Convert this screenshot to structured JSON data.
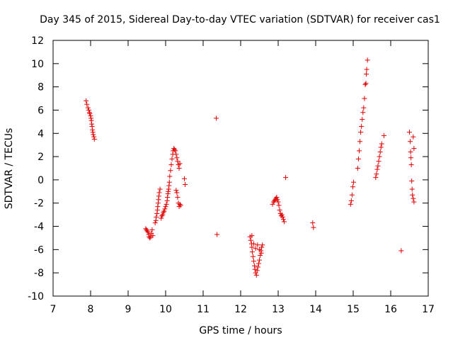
{
  "chart_data": {
    "type": "scatter",
    "title": "Day 345 of 2015, Sidereal Day-to-day VTEC variation (SDTVAR) for receiver cas1",
    "xlabel": "GPS time / hours",
    "ylabel": "SDTVAR / TECUs",
    "xlim": [
      7,
      17
    ],
    "ylim": [
      -10,
      12
    ],
    "xticks": [
      "7",
      "8",
      "9",
      "10",
      "11",
      "12",
      "13",
      "14",
      "15",
      "16",
      "17"
    ],
    "yticks": [
      "-10",
      "-8",
      "-6",
      "-4",
      "-2",
      "0",
      "2",
      "4",
      "6",
      "8",
      "10",
      "12"
    ],
    "grid": false,
    "marker": "+",
    "marker_color": "#e00000",
    "series": [
      {
        "name": "SDTVAR",
        "points": [
          [
            7.88,
            6.8
          ],
          [
            7.9,
            6.5
          ],
          [
            7.93,
            6.2
          ],
          [
            7.95,
            6.0
          ],
          [
            7.97,
            5.8
          ],
          [
            7.98,
            5.7
          ],
          [
            8.0,
            5.5
          ],
          [
            8.01,
            5.3
          ],
          [
            8.02,
            5.1
          ],
          [
            8.03,
            4.8
          ],
          [
            8.04,
            4.6
          ],
          [
            8.05,
            4.3
          ],
          [
            8.06,
            4.1
          ],
          [
            8.07,
            3.9
          ],
          [
            8.09,
            3.7
          ],
          [
            8.1,
            3.5
          ],
          [
            9.47,
            -4.2
          ],
          [
            9.49,
            -4.3
          ],
          [
            9.51,
            -4.4
          ],
          [
            9.53,
            -4.5
          ],
          [
            9.55,
            -4.7
          ],
          [
            9.56,
            -4.9
          ],
          [
            9.58,
            -5.0
          ],
          [
            9.6,
            -4.9
          ],
          [
            9.62,
            -4.6
          ],
          [
            9.64,
            -4.3
          ],
          [
            9.66,
            -4.8
          ],
          [
            9.72,
            -3.7
          ],
          [
            9.74,
            -3.5
          ],
          [
            9.75,
            -3.2
          ],
          [
            9.77,
            -2.9
          ],
          [
            9.78,
            -2.6
          ],
          [
            9.79,
            -2.3
          ],
          [
            9.8,
            -2.0
          ],
          [
            9.81,
            -1.7
          ],
          [
            9.82,
            -1.4
          ],
          [
            9.83,
            -1.1
          ],
          [
            9.85,
            -0.8
          ],
          [
            9.88,
            -3.3
          ],
          [
            9.9,
            -3.1
          ],
          [
            9.92,
            -3.0
          ],
          [
            9.94,
            -2.8
          ],
          [
            9.96,
            -2.7
          ],
          [
            9.98,
            -2.5
          ],
          [
            10.0,
            -2.3
          ],
          [
            10.02,
            -2.1
          ],
          [
            10.04,
            -1.8
          ],
          [
            10.05,
            -1.5
          ],
          [
            10.06,
            -1.2
          ],
          [
            10.07,
            -1.0
          ],
          [
            10.08,
            -0.8
          ],
          [
            10.09,
            -0.5
          ],
          [
            10.1,
            -0.2
          ],
          [
            10.11,
            0.3
          ],
          [
            10.13,
            0.8
          ],
          [
            10.15,
            1.3
          ],
          [
            10.17,
            1.8
          ],
          [
            10.19,
            2.2
          ],
          [
            10.2,
            2.5
          ],
          [
            10.22,
            2.7
          ],
          [
            10.24,
            2.6
          ],
          [
            10.26,
            2.5
          ],
          [
            10.28,
            2.2
          ],
          [
            10.3,
            1.9
          ],
          [
            10.32,
            1.6
          ],
          [
            10.34,
            1.3
          ],
          [
            10.36,
            1.0
          ],
          [
            10.38,
            1.4
          ],
          [
            10.28,
            -0.9
          ],
          [
            10.3,
            -1.1
          ],
          [
            10.32,
            -1.5
          ],
          [
            10.34,
            -2.0
          ],
          [
            10.36,
            -2.3
          ],
          [
            10.38,
            -2.1
          ],
          [
            10.4,
            -2.2
          ],
          [
            10.5,
            0.1
          ],
          [
            10.52,
            -0.4
          ],
          [
            11.35,
            5.3
          ],
          [
            11.37,
            -4.7
          ],
          [
            12.25,
            -4.9
          ],
          [
            12.27,
            -5.2
          ],
          [
            12.29,
            -5.5
          ],
          [
            12.3,
            -5.8
          ],
          [
            12.31,
            -6.2
          ],
          [
            12.33,
            -6.6
          ],
          [
            12.35,
            -7.0
          ],
          [
            12.37,
            -7.4
          ],
          [
            12.38,
            -7.7
          ],
          [
            12.4,
            -8.0
          ],
          [
            12.42,
            -8.2
          ],
          [
            12.44,
            -7.8
          ],
          [
            12.46,
            -7.5
          ],
          [
            12.48,
            -7.2
          ],
          [
            12.5,
            -6.9
          ],
          [
            12.52,
            -6.5
          ],
          [
            12.54,
            -6.1
          ],
          [
            12.56,
            -5.8
          ],
          [
            12.3,
            -4.8
          ],
          [
            12.35,
            -5.5
          ],
          [
            12.4,
            -5.9
          ],
          [
            12.45,
            -5.6
          ],
          [
            12.5,
            -6.0
          ],
          [
            12.55,
            -6.3
          ],
          [
            12.58,
            -5.6
          ],
          [
            12.85,
            -2.1
          ],
          [
            12.88,
            -1.9
          ],
          [
            12.9,
            -1.8
          ],
          [
            12.92,
            -1.7
          ],
          [
            12.94,
            -1.6
          ],
          [
            12.96,
            -1.5
          ],
          [
            12.98,
            -1.7
          ],
          [
            13.0,
            -1.9
          ],
          [
            13.02,
            -2.2
          ],
          [
            13.04,
            -2.6
          ],
          [
            13.06,
            -2.9
          ],
          [
            13.08,
            -3.1
          ],
          [
            13.1,
            -3.0
          ],
          [
            13.12,
            -3.2
          ],
          [
            13.14,
            -3.4
          ],
          [
            13.16,
            -3.6
          ],
          [
            13.2,
            0.2
          ],
          [
            13.92,
            -3.7
          ],
          [
            13.94,
            -4.1
          ],
          [
            14.93,
            -2.1
          ],
          [
            14.95,
            -1.8
          ],
          [
            14.97,
            -1.3
          ],
          [
            14.99,
            -0.6
          ],
          [
            15.01,
            -0.2
          ],
          [
            15.12,
            1.0
          ],
          [
            15.14,
            1.8
          ],
          [
            15.16,
            2.5
          ],
          [
            15.18,
            3.3
          ],
          [
            15.2,
            4.1
          ],
          [
            15.22,
            4.6
          ],
          [
            15.24,
            5.2
          ],
          [
            15.26,
            5.8
          ],
          [
            15.28,
            6.2
          ],
          [
            15.3,
            7.0
          ],
          [
            15.32,
            8.2
          ],
          [
            15.34,
            8.3
          ],
          [
            15.35,
            9.1
          ],
          [
            15.36,
            9.5
          ],
          [
            15.38,
            10.3
          ],
          [
            15.6,
            0.2
          ],
          [
            15.62,
            0.5
          ],
          [
            15.64,
            0.9
          ],
          [
            15.66,
            1.2
          ],
          [
            15.68,
            1.6
          ],
          [
            15.7,
            2.0
          ],
          [
            15.72,
            2.4
          ],
          [
            15.74,
            2.8
          ],
          [
            15.76,
            3.1
          ],
          [
            15.82,
            3.8
          ],
          [
            16.28,
            -6.1
          ],
          [
            16.5,
            4.1
          ],
          [
            16.52,
            3.3
          ],
          [
            16.53,
            2.4
          ],
          [
            16.54,
            1.9
          ],
          [
            16.55,
            1.3
          ],
          [
            16.56,
            -0.1
          ],
          [
            16.57,
            -0.8
          ],
          [
            16.58,
            -1.3
          ],
          [
            16.6,
            -1.6
          ],
          [
            16.62,
            -1.9
          ],
          [
            16.6,
            3.7
          ],
          [
            16.62,
            2.7
          ]
        ]
      }
    ]
  }
}
